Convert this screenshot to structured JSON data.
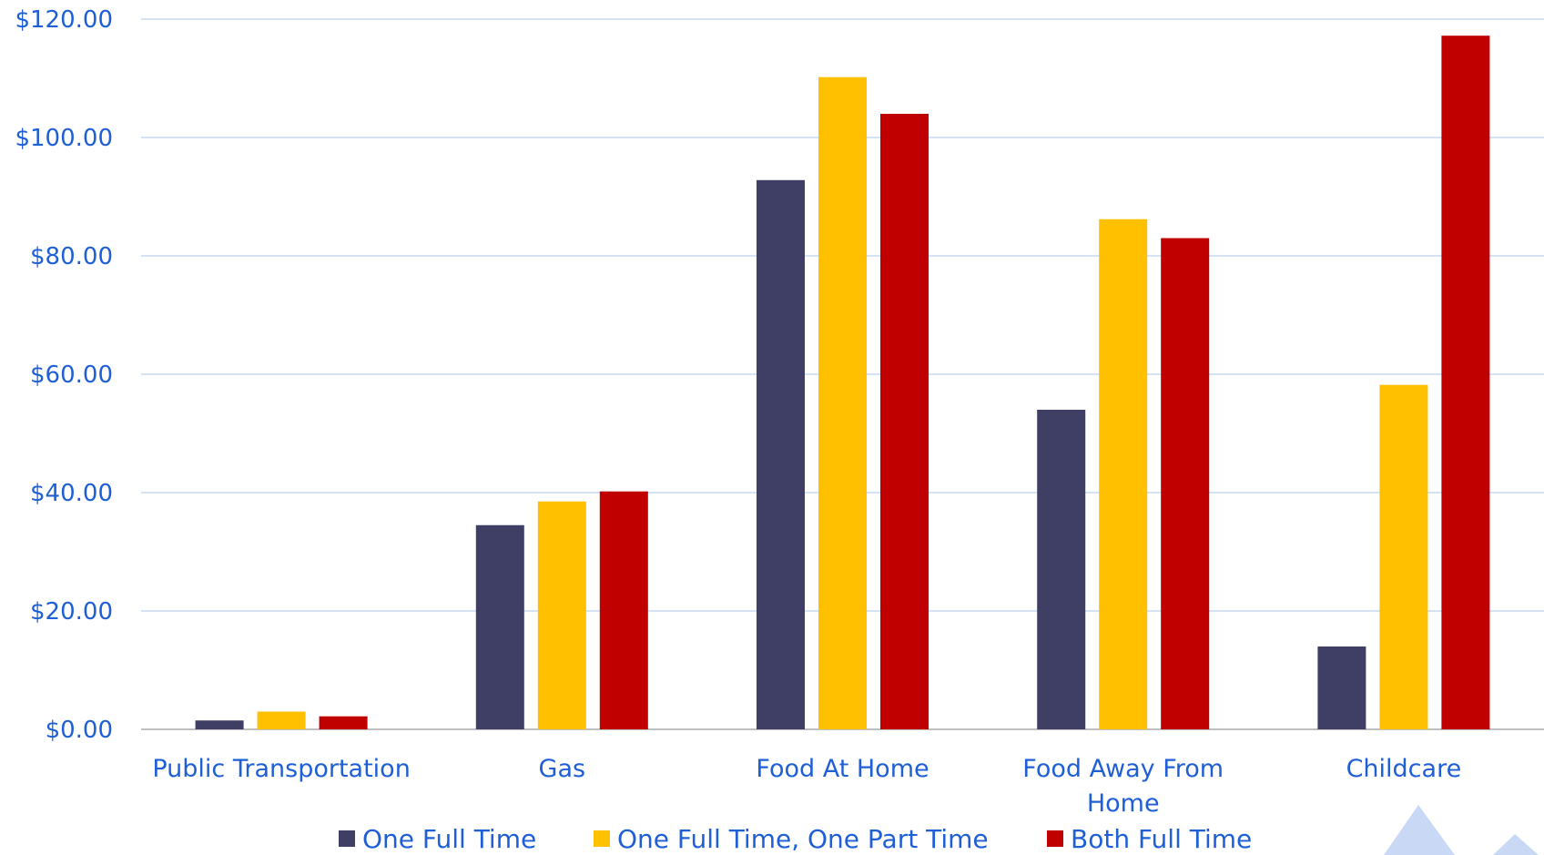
{
  "chart_data": {
    "type": "bar",
    "categories": [
      [
        "Public Transportation"
      ],
      [
        "Gas"
      ],
      [
        "Food At Home"
      ],
      [
        "Food Away From",
        "Home"
      ],
      [
        "Childcare"
      ]
    ],
    "series": [
      {
        "name": "One Full Time",
        "color": "#3F3F66",
        "values": [
          1.5,
          34.5,
          92.8,
          54.0,
          14.0
        ]
      },
      {
        "name": "One Full Time, One Part Time",
        "color": "#FFC000",
        "values": [
          3.0,
          38.5,
          110.2,
          86.2,
          58.2
        ]
      },
      {
        "name": "Both Full Time",
        "color": "#C00000",
        "values": [
          2.2,
          40.2,
          104.0,
          83.0,
          117.2
        ]
      }
    ],
    "yticks": [
      "$0.00",
      "$20.00",
      "$40.00",
      "$60.00",
      "$80.00",
      "$100.00",
      "$120.00"
    ],
    "ylim": [
      0,
      120
    ],
    "grid": true,
    "legend_position": "bottom",
    "colors": {
      "axis_text": "#1F5FD6",
      "gridline": "#C5D9F1",
      "axis_line": "#BFBFBF",
      "decoration": "#C9D8F5"
    }
  }
}
